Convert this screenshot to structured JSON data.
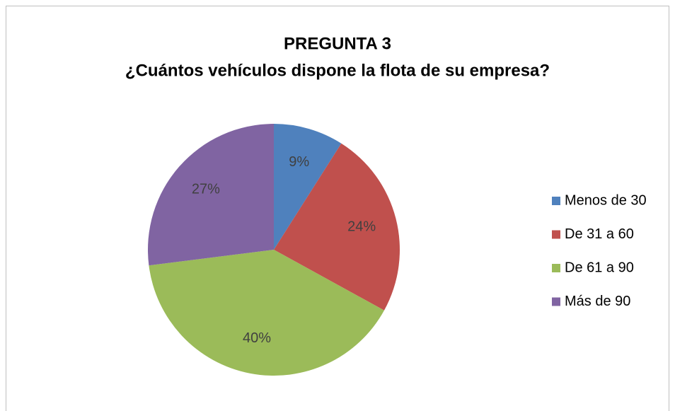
{
  "chart_data": {
    "type": "pie",
    "title": "PREGUNTA 3",
    "subtitle": "¿Cuántos vehículos dispone la flota de su empresa?",
    "categories": [
      "Menos de 30",
      "De 31 a 60",
      "De 61 a 90",
      "Más de 90"
    ],
    "values": [
      9,
      24,
      40,
      27
    ],
    "value_labels": [
      "9%",
      "24%",
      "40%",
      "27%"
    ],
    "colors": [
      "#4f81bd",
      "#c0504d",
      "#9bbb59",
      "#8064a2"
    ],
    "legend": "right"
  }
}
